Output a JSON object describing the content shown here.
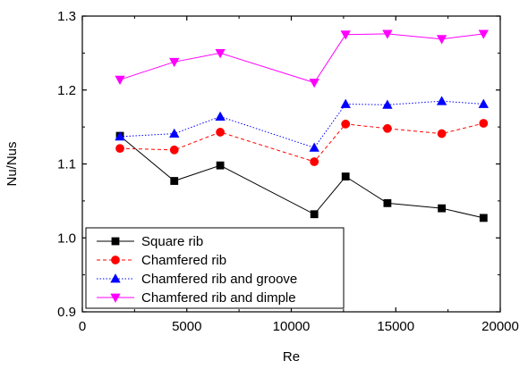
{
  "chart_data": {
    "type": "line",
    "title": "",
    "xlabel": "Re",
    "ylabel": "Nu/Nus",
    "xlim": [
      0,
      20000
    ],
    "ylim": [
      0.9,
      1.3
    ],
    "x_ticks": [
      0,
      5000,
      10000,
      15000,
      20000
    ],
    "y_ticks": [
      0.9,
      1.0,
      1.1,
      1.2,
      1.3
    ],
    "x_tick_labels": [
      "0",
      "5000",
      "10000",
      "15000",
      "20000"
    ],
    "y_tick_labels": [
      "0.9",
      "1.0",
      "1.1",
      "1.2",
      "1.3"
    ],
    "grid": false,
    "legend_position": "bottom-left",
    "x": [
      1800,
      4400,
      6600,
      11100,
      12600,
      14600,
      17200,
      19200
    ],
    "series": [
      {
        "name": "Square rib",
        "values": [
          1.138,
          1.077,
          1.098,
          1.032,
          1.083,
          1.047,
          1.04,
          1.027
        ],
        "color": "#000000",
        "marker": "square",
        "line_style": "solid"
      },
      {
        "name": "Chamfered rib",
        "values": [
          1.121,
          1.119,
          1.143,
          1.103,
          1.154,
          1.148,
          1.141,
          1.155
        ],
        "color": "#ff0000",
        "marker": "circle",
        "line_style": "dashed"
      },
      {
        "name": "Chamfered rib and groove",
        "values": [
          1.137,
          1.141,
          1.164,
          1.122,
          1.181,
          1.18,
          1.185,
          1.181
        ],
        "color": "#0000ff",
        "marker": "triangle-up",
        "line_style": "dotted"
      },
      {
        "name": "Chamfered rib and dimple",
        "values": [
          1.214,
          1.238,
          1.25,
          1.21,
          1.275,
          1.276,
          1.269,
          1.276
        ],
        "color": "#ff00ff",
        "marker": "triangle-down",
        "line_style": "solid"
      }
    ]
  }
}
